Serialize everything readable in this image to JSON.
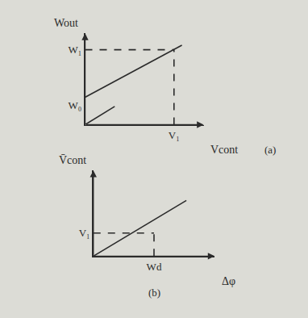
{
  "chart_data": [
    {
      "type": "line",
      "caption": "(a)",
      "x_label": "Vcont",
      "y_label": "Wout",
      "xlim": [
        0,
        12
      ],
      "ylim": [
        0,
        10
      ],
      "xticks": [
        {
          "value": 9,
          "label": "V₁"
        }
      ],
      "yticks": [
        {
          "value": 2.1,
          "label": "W₀"
        },
        {
          "value": 8.2,
          "label": "W₁"
        }
      ],
      "grid": false,
      "series": [
        {
          "x": [
            0,
            9.8
          ],
          "values": [
            3,
            8.7
          ],
          "color": "#2b2b2b",
          "line_style": "solid"
        },
        {
          "x": [
            0,
            3
          ],
          "values": [
            0,
            2
          ],
          "color": "#2b2b2b",
          "line_style": "solid"
        },
        {
          "x": [
            0,
            9
          ],
          "values": [
            8.2,
            8.2
          ],
          "color": "#2b2b2b",
          "line_style": "dash"
        },
        {
          "x": [
            9,
            9
          ],
          "values": [
            0,
            8.2
          ],
          "color": "#2b2b2b",
          "line_style": "dash"
        }
      ]
    },
    {
      "type": "line",
      "caption": "(b)",
      "x_label": "Δφ",
      "y_label": "V̄cont",
      "xlim": [
        0,
        15
      ],
      "ylim": [
        0,
        10
      ],
      "xticks": [
        {
          "value": 7.5,
          "label": "Wd"
        }
      ],
      "yticks": [
        {
          "value": 2.7,
          "label": "V₁"
        }
      ],
      "grid": false,
      "series": [
        {
          "x": [
            0,
            11.5
          ],
          "values": [
            0,
            6.5
          ],
          "color": "#2b2b2b",
          "line_style": "solid"
        },
        {
          "x": [
            0,
            7.5
          ],
          "values": [
            2.7,
            2.7
          ],
          "color": "#2b2b2b",
          "line_style": "dash"
        },
        {
          "x": [
            7.5,
            7.5
          ],
          "values": [
            0,
            2.7
          ],
          "color": "#2b2b2b",
          "line_style": "dash"
        }
      ]
    }
  ]
}
